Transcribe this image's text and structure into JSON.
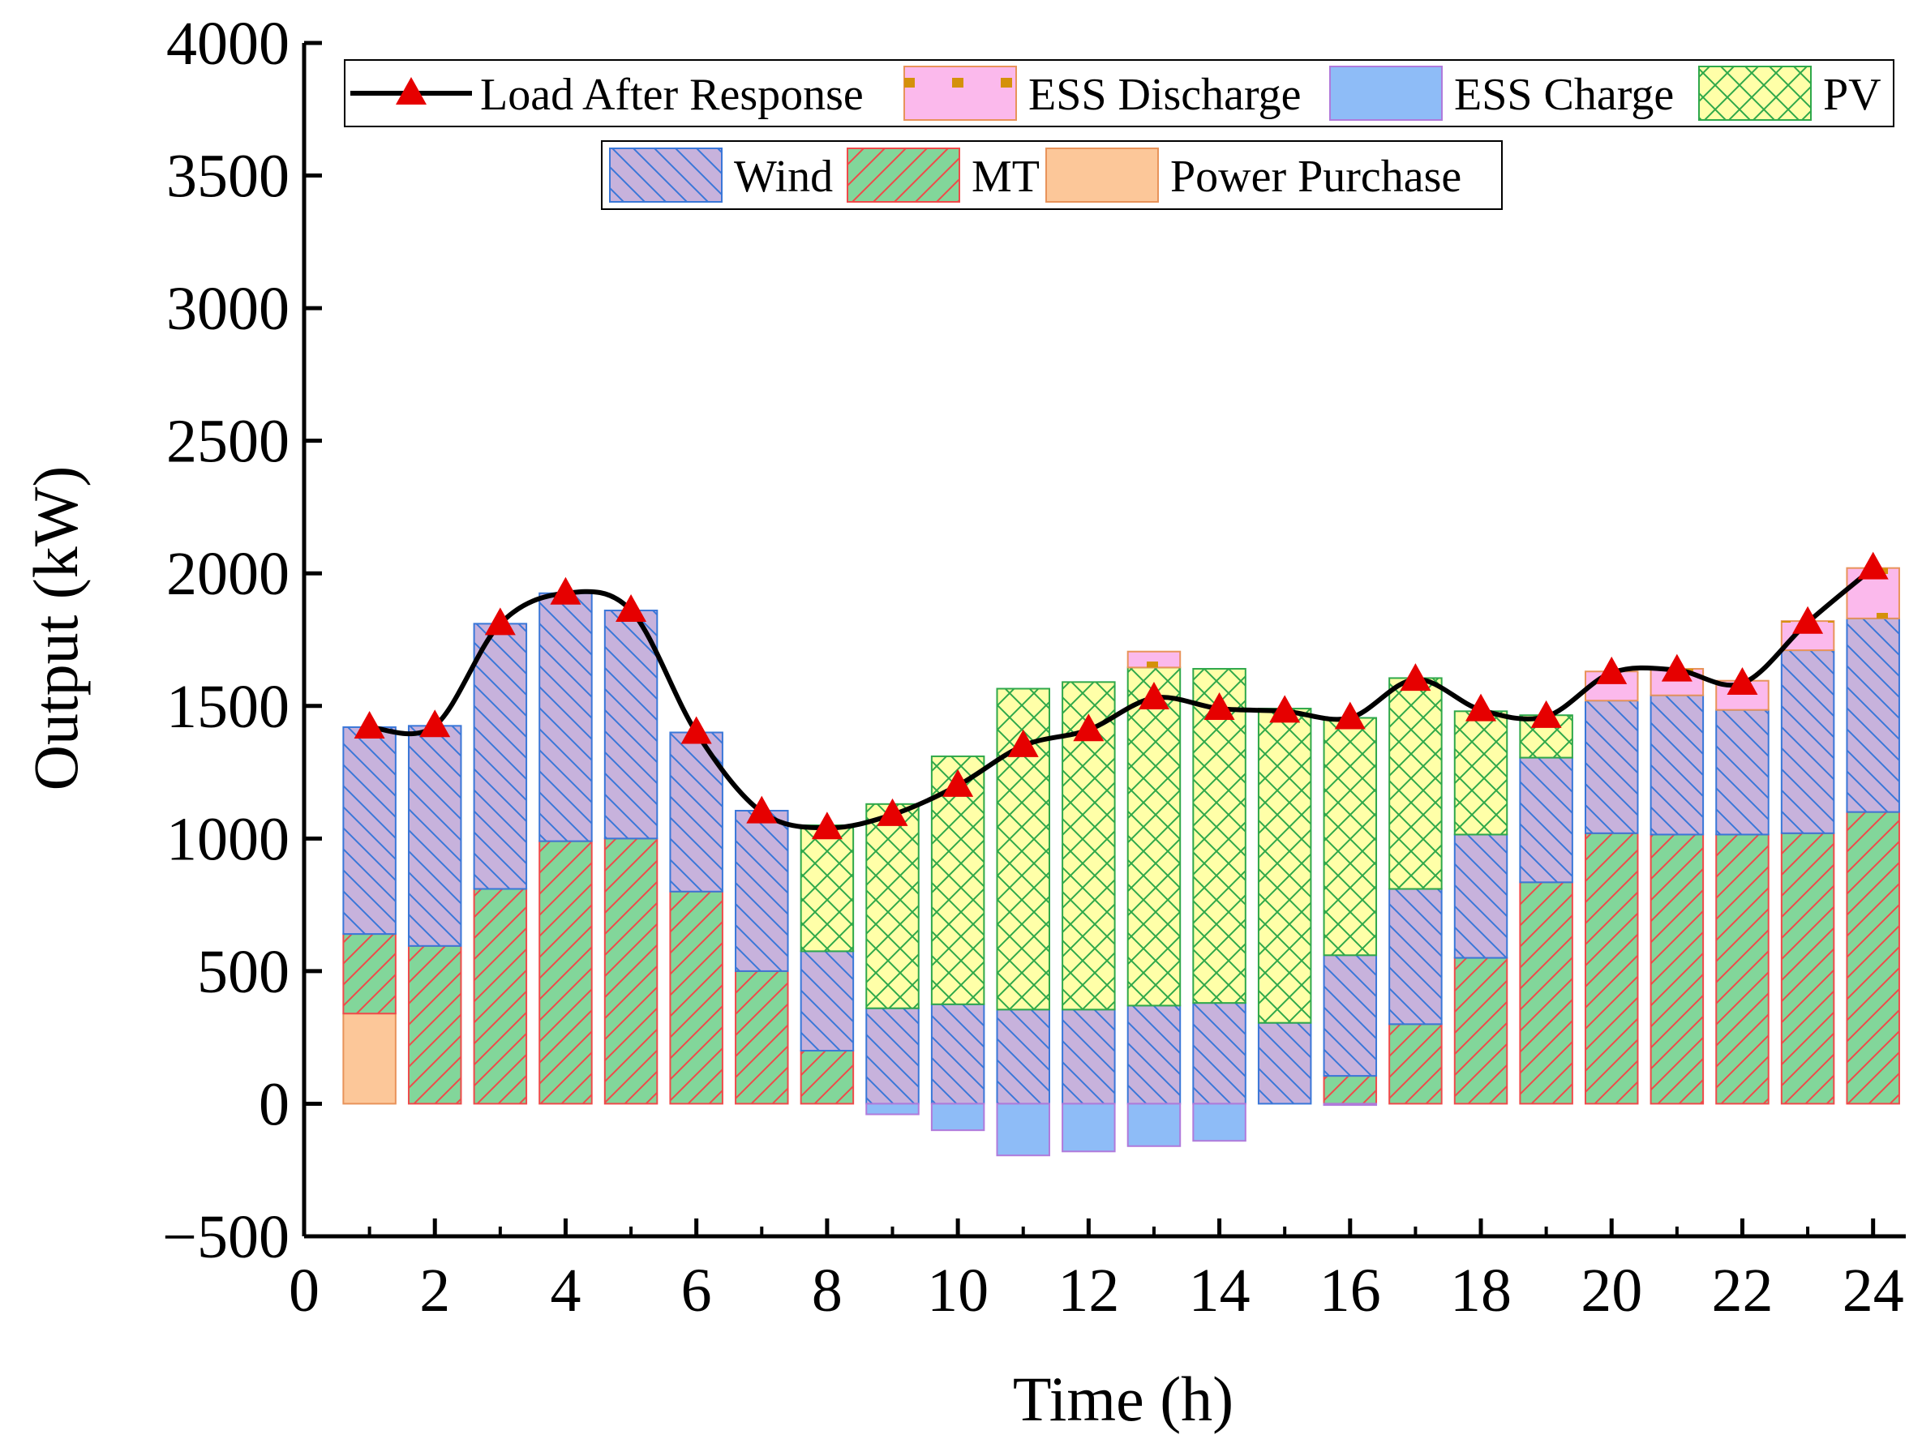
{
  "chart_data": {
    "type": "bar",
    "stacked": true,
    "title": "",
    "xlabel": "Time (h)",
    "ylabel": "Output (kW)",
    "xlim": [
      0,
      24.5
    ],
    "ylim": [
      -500,
      4000
    ],
    "xticks": [
      0,
      2,
      4,
      6,
      8,
      10,
      12,
      14,
      16,
      18,
      20,
      22,
      24
    ],
    "yticks": [
      -500,
      0,
      500,
      1000,
      1500,
      2000,
      2500,
      3000,
      3500,
      4000
    ],
    "ytick_labels": [
      "−500",
      "0",
      "500",
      "1000",
      "1500",
      "2000",
      "2500",
      "3000",
      "3500",
      "4000"
    ],
    "x": [
      1,
      2,
      3,
      4,
      5,
      6,
      7,
      8,
      9,
      10,
      11,
      12,
      13,
      14,
      15,
      16,
      17,
      18,
      19,
      20,
      21,
      22,
      23,
      24
    ],
    "series": [
      {
        "name": "Power Purchase",
        "kind": "bar",
        "fill": "#fcc799",
        "stroke": "#e8935a",
        "pattern": "none",
        "values": [
          340,
          0,
          0,
          0,
          0,
          0,
          0,
          0,
          0,
          0,
          0,
          0,
          0,
          0,
          0,
          0,
          0,
          0,
          0,
          0,
          0,
          0,
          0,
          0
        ]
      },
      {
        "name": "MT",
        "kind": "bar",
        "fill": "#82d69a",
        "stroke": "#ef4a4a",
        "pattern": "diag-right",
        "values": [
          300,
          595,
          810,
          990,
          1000,
          800,
          500,
          200,
          0,
          0,
          0,
          0,
          0,
          0,
          0,
          105,
          300,
          550,
          835,
          1020,
          1015,
          1015,
          1020,
          1100
        ]
      },
      {
        "name": "Wind",
        "kind": "bar",
        "fill": "#c7b2dc",
        "stroke": "#3a77d8",
        "pattern": "diag-left",
        "values": [
          780,
          830,
          1000,
          935,
          860,
          600,
          605,
          375,
          360,
          375,
          355,
          355,
          370,
          380,
          305,
          455,
          510,
          465,
          470,
          500,
          525,
          470,
          690,
          730
        ]
      },
      {
        "name": "PV",
        "kind": "bar",
        "fill": "#ffffa8",
        "stroke": "#2fa84a",
        "pattern": "cross",
        "values": [
          0,
          0,
          0,
          0,
          0,
          0,
          0,
          475,
          770,
          935,
          1210,
          1235,
          1275,
          1260,
          1185,
          895,
          795,
          465,
          160,
          0,
          0,
          0,
          0,
          0
        ]
      },
      {
        "name": "ESS Discharge",
        "kind": "bar",
        "fill": "#fbb9ec",
        "stroke": "#e8935a",
        "pattern": "dots",
        "values": [
          0,
          0,
          0,
          0,
          0,
          0,
          0,
          0,
          0,
          0,
          0,
          0,
          60,
          0,
          0,
          0,
          0,
          0,
          0,
          110,
          100,
          110,
          110,
          190
        ]
      },
      {
        "name": "ESS Charge",
        "kind": "negative_bar",
        "fill": "#8ebcf7",
        "stroke": "#b07adb",
        "pattern": "none",
        "values": [
          0,
          0,
          0,
          0,
          0,
          0,
          0,
          0,
          -40,
          -100,
          -195,
          -180,
          -160,
          -140,
          0,
          -5,
          0,
          0,
          0,
          0,
          0,
          0,
          0,
          0
        ]
      },
      {
        "name": "Load After Response",
        "kind": "line",
        "color": "#000000",
        "marker": "triangle",
        "marker_color": "#e60000",
        "values": [
          1420,
          1425,
          1810,
          1925,
          1860,
          1400,
          1100,
          1040,
          1090,
          1200,
          1350,
          1410,
          1530,
          1490,
          1480,
          1455,
          1600,
          1485,
          1460,
          1625,
          1635,
          1585,
          1815,
          2020
        ]
      }
    ],
    "legend": {
      "placement": "top",
      "order": [
        "Load After Response",
        "ESS Discharge",
        "ESS Charge",
        "PV",
        "Wind",
        "MT",
        "Power Purchase"
      ]
    }
  }
}
